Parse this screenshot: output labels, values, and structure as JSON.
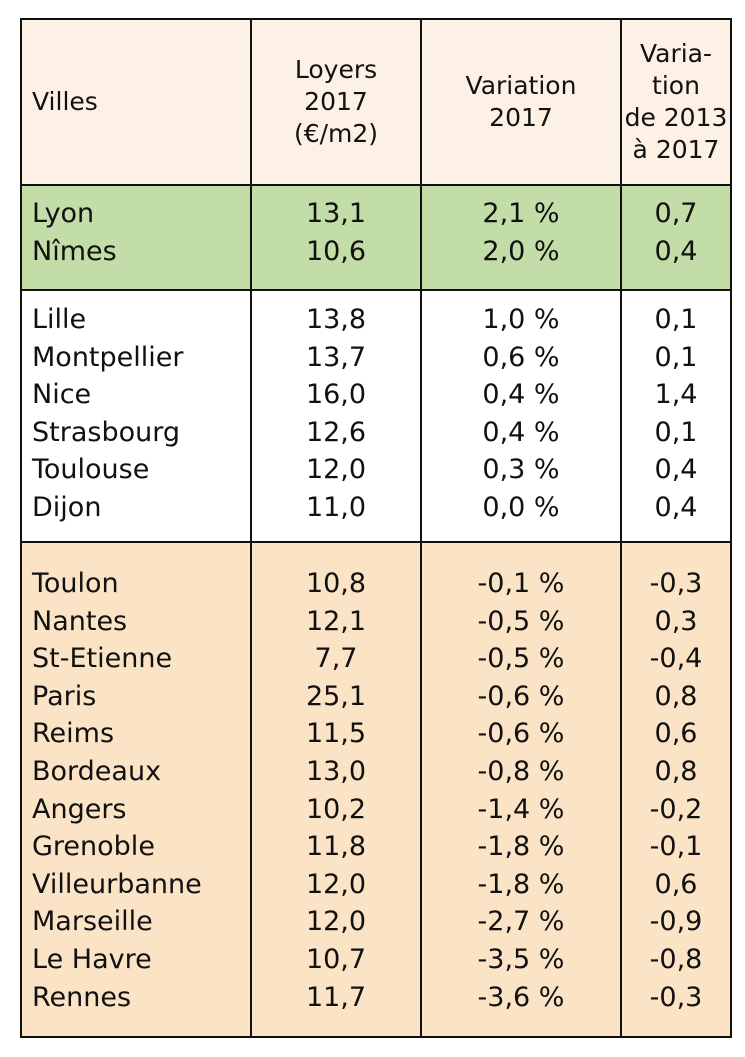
{
  "header": {
    "col1": "Villes",
    "col2_lines": [
      "Loyers",
      "2017",
      "(€/m2)"
    ],
    "col3_lines": [
      "Variation",
      "2017"
    ],
    "col4_lines": [
      "Varia-",
      "tion",
      "de 2013",
      "à 2017"
    ]
  },
  "groups": {
    "green": [
      {
        "city": "Lyon",
        "rent": "13,1",
        "var2017": "2,1 %",
        "var1317": "0,7"
      },
      {
        "city": "Nîmes",
        "rent": "10,6",
        "var2017": "2,0 %",
        "var1317": "0,4"
      }
    ],
    "white": [
      {
        "city": "Lille",
        "rent": "13,8",
        "var2017": "1,0 %",
        "var1317": "0,1"
      },
      {
        "city": "Montpellier",
        "rent": "13,7",
        "var2017": "0,6 %",
        "var1317": "0,1"
      },
      {
        "city": "Nice",
        "rent": "16,0",
        "var2017": "0,4 %",
        "var1317": "1,4"
      },
      {
        "city": "Strasbourg",
        "rent": "12,6",
        "var2017": "0,4 %",
        "var1317": "0,1"
      },
      {
        "city": "Toulouse",
        "rent": "12,0",
        "var2017": "0,3 %",
        "var1317": "0,4"
      },
      {
        "city": "Dijon",
        "rent": "11,0",
        "var2017": "0,0 %",
        "var1317": "0,4"
      }
    ],
    "orange": [
      {
        "city": "Toulon",
        "rent": "10,8",
        "var2017": "-0,1 %",
        "var1317": "-0,3"
      },
      {
        "city": "Nantes",
        "rent": "12,1",
        "var2017": "-0,5 %",
        "var1317": "0,3"
      },
      {
        "city": "St-Etienne",
        "rent": "7,7",
        "var2017": "-0,5 %",
        "var1317": "-0,4"
      },
      {
        "city": "Paris",
        "rent": "25,1",
        "var2017": "-0,6 %",
        "var1317": "0,8"
      },
      {
        "city": "Reims",
        "rent": "11,5",
        "var2017": "-0,6 %",
        "var1317": "0,6"
      },
      {
        "city": "Bordeaux",
        "rent": "13,0",
        "var2017": "-0,8 %",
        "var1317": "0,8"
      },
      {
        "city": "Angers",
        "rent": "10,2",
        "var2017": "-1,4 %",
        "var1317": "-0,2"
      },
      {
        "city": "Grenoble",
        "rent": "11,8",
        "var2017": "-1,8 %",
        "var1317": "-0,1"
      },
      {
        "city": "Villeurbanne",
        "rent": "12,0",
        "var2017": "-1,8 %",
        "var1317": "0,6"
      },
      {
        "city": "Marseille",
        "rent": "12,0",
        "var2017": "-2,7 %",
        "var1317": "-0,9"
      },
      {
        "city": "Le Havre",
        "rent": "10,7",
        "var2017": "-3,5 %",
        "var1317": "-0,8"
      },
      {
        "city": "Rennes",
        "rent": "11,7",
        "var2017": "-3,6 %",
        "var1317": "-0,3"
      }
    ]
  },
  "colors": {
    "header_bg": "#fdf1e5",
    "green_bg": "#c3dda8",
    "white_bg": "#ffffff",
    "orange_bg": "#fbe3c6",
    "border": "#111111"
  }
}
